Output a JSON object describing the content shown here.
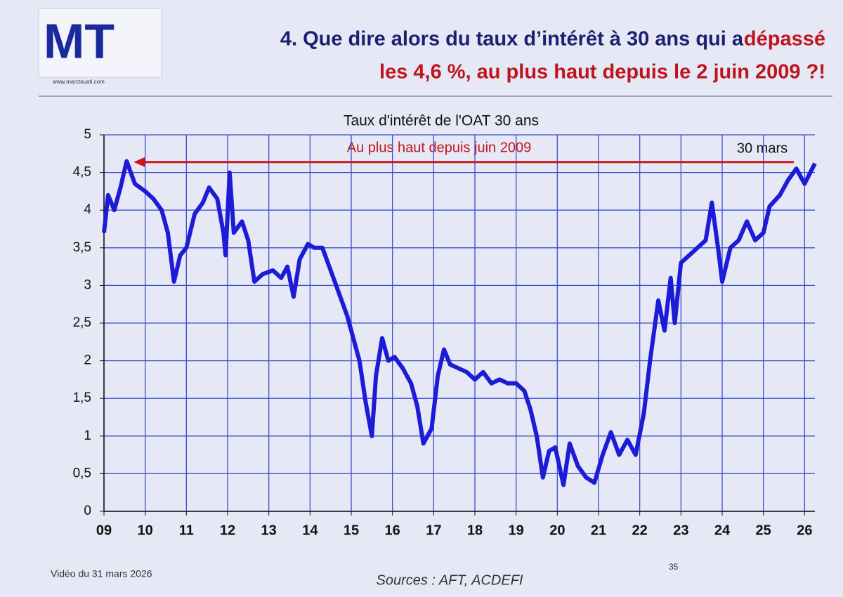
{
  "header": {
    "logo": "MT",
    "logo_url": "www.marctouati.com",
    "title_line1": "4. Que dire alors du taux d’intérêt à 30 ans qui a",
    "title_line1_highlight": "dépassé",
    "title_line2": "les 4,6 %, au plus haut depuis le 2 juin 2009 ?!"
  },
  "chart_data": {
    "type": "line",
    "title": "Taux d'intérêt de l'OAT 30 ans",
    "annotations": [
      "Au plus haut depuis juin 2009",
      "30 mars"
    ],
    "xlim": [
      2009,
      2026.25
    ],
    "ylim": [
      0,
      5
    ],
    "grid": true,
    "xticks": [
      {
        "value": 2009,
        "label": "09"
      },
      {
        "value": 2010,
        "label": "10"
      },
      {
        "value": 2011,
        "label": "11"
      },
      {
        "value": 2012,
        "label": "12"
      },
      {
        "value": 2013,
        "label": "13"
      },
      {
        "value": 2014,
        "label": "14"
      },
      {
        "value": 2015,
        "label": "15"
      },
      {
        "value": 2016,
        "label": "16"
      },
      {
        "value": 2017,
        "label": "17"
      },
      {
        "value": 2018,
        "label": "18"
      },
      {
        "value": 2019,
        "label": "19"
      },
      {
        "value": 2020,
        "label": "20"
      },
      {
        "value": 2021,
        "label": "21"
      },
      {
        "value": 2022,
        "label": "22"
      },
      {
        "value": 2023,
        "label": "23"
      },
      {
        "value": 2024,
        "label": "24"
      },
      {
        "value": 2025,
        "label": "25"
      },
      {
        "value": 2026,
        "label": "26"
      }
    ],
    "yticks": [
      0,
      {
        "value": 0.5,
        "label": "0,5"
      },
      1,
      {
        "value": 1.5,
        "label": "1,5"
      },
      2,
      {
        "value": 2.5,
        "label": "2,5"
      },
      3,
      {
        "value": 3.5,
        "label": "3,5"
      },
      4,
      {
        "value": 4.5,
        "label": "4,5"
      },
      5
    ],
    "x": [
      2009.0,
      2009.1,
      2009.25,
      2009.4,
      2009.55,
      2009.75,
      2010.0,
      2010.2,
      2010.4,
      2010.55,
      2010.7,
      2010.85,
      2011.0,
      2011.2,
      2011.4,
      2011.55,
      2011.75,
      2011.9,
      2011.95,
      2012.05,
      2012.15,
      2012.35,
      2012.5,
      2012.65,
      2012.85,
      2013.1,
      2013.3,
      2013.45,
      2013.6,
      2013.75,
      2013.95,
      2014.1,
      2014.3,
      2014.5,
      2014.7,
      2014.9,
      2015.05,
      2015.2,
      2015.35,
      2015.5,
      2015.6,
      2015.75,
      2015.9,
      2016.05,
      2016.25,
      2016.45,
      2016.6,
      2016.75,
      2016.95,
      2017.1,
      2017.25,
      2017.4,
      2017.6,
      2017.8,
      2018.0,
      2018.2,
      2018.4,
      2018.6,
      2018.8,
      2019.0,
      2019.2,
      2019.35,
      2019.5,
      2019.65,
      2019.8,
      2019.95,
      2020.15,
      2020.3,
      2020.5,
      2020.7,
      2020.9,
      2021.1,
      2021.3,
      2021.5,
      2021.7,
      2021.9,
      2022.1,
      2022.25,
      2022.45,
      2022.6,
      2022.75,
      2022.85,
      2023.0,
      2023.2,
      2023.4,
      2023.6,
      2023.75,
      2023.9,
      2024.0,
      2024.2,
      2024.4,
      2024.6,
      2024.8,
      2025.0,
      2025.15,
      2025.4,
      2025.6,
      2025.8,
      2026.0,
      2026.25
    ],
    "series": [
      {
        "name": "OAT 30 ans",
        "color": "#1c1cd6",
        "values": [
          3.7,
          4.2,
          4.0,
          4.3,
          4.65,
          4.35,
          4.25,
          4.15,
          4.0,
          3.7,
          3.05,
          3.4,
          3.5,
          3.95,
          4.1,
          4.3,
          4.15,
          3.7,
          3.4,
          4.5,
          3.7,
          3.85,
          3.6,
          3.05,
          3.15,
          3.2,
          3.1,
          3.25,
          2.85,
          3.35,
          3.55,
          3.5,
          3.5,
          3.2,
          2.9,
          2.6,
          2.3,
          2.0,
          1.45,
          1.0,
          1.8,
          2.3,
          2.0,
          2.05,
          1.9,
          1.7,
          1.4,
          0.9,
          1.1,
          1.8,
          2.15,
          1.95,
          1.9,
          1.85,
          1.75,
          1.85,
          1.7,
          1.75,
          1.7,
          1.7,
          1.6,
          1.35,
          1.0,
          0.45,
          0.8,
          0.85,
          0.35,
          0.9,
          0.6,
          0.45,
          0.38,
          0.75,
          1.05,
          0.75,
          0.95,
          0.75,
          1.3,
          2.0,
          2.8,
          2.4,
          3.1,
          2.5,
          3.3,
          3.4,
          3.5,
          3.6,
          4.1,
          3.5,
          3.05,
          3.5,
          3.6,
          3.85,
          3.6,
          3.7,
          4.05,
          4.2,
          4.4,
          4.55,
          4.35,
          4.62
        ]
      }
    ]
  },
  "footer": {
    "video": "Vidéo du 31 mars 2026",
    "page": "35",
    "sources": "Sources : AFT, ACDEFI"
  }
}
